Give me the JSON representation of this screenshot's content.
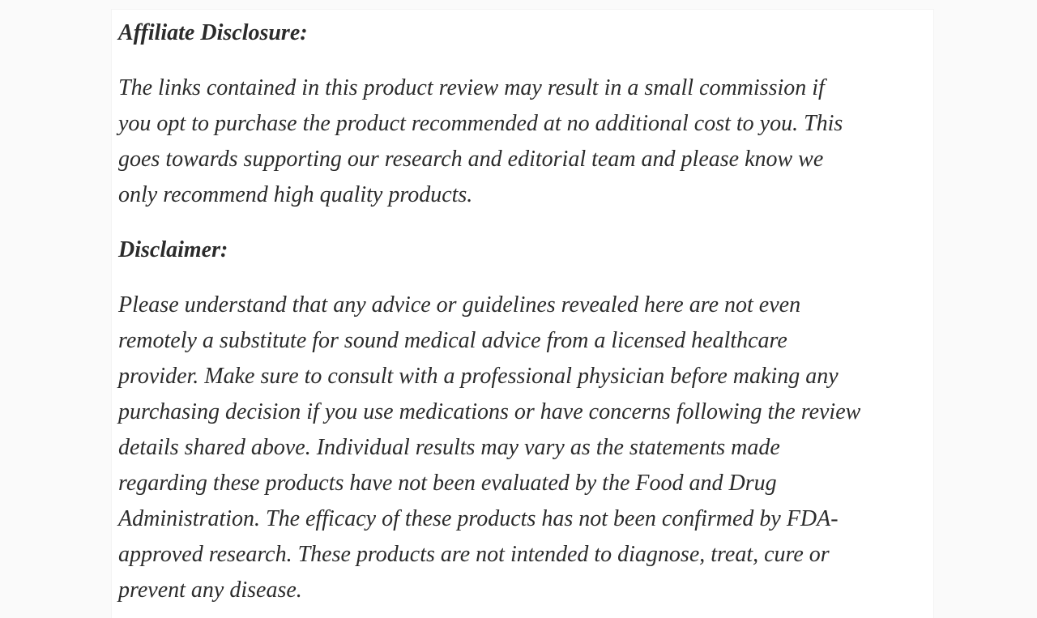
{
  "page": {
    "background_color": "#fafafa",
    "card_color": "#ffffff",
    "text_color": "#2b2b2b"
  },
  "article": {
    "affiliate_heading": "Affiliate Disclosure:",
    "affiliate_paragraph": "The links contained in this product review may result in a small commission if\nyou opt to purchase the product recommended at no additional cost to you. This\ngoes towards supporting our research and editorial team and please know we\nonly recommend high quality products.",
    "disclaimer_heading": "Disclaimer:",
    "disclaimer_paragraph": "Please understand that any advice or guidelines revealed here are not even\nremotely a substitute for sound medical advice from a licensed healthcare\nprovider. Make sure to consult with a professional physician before making any\npurchasing decision if you use medications or have concerns following the review\ndetails shared above. Individual results may vary as the statements made\nregarding these products have not been evaluated by the Food and Drug\nAdministration. The efficacy of these products has not been confirmed by FDA-\napproved research. These products are not intended to diagnose, treat, cure or\nprevent any disease."
  }
}
